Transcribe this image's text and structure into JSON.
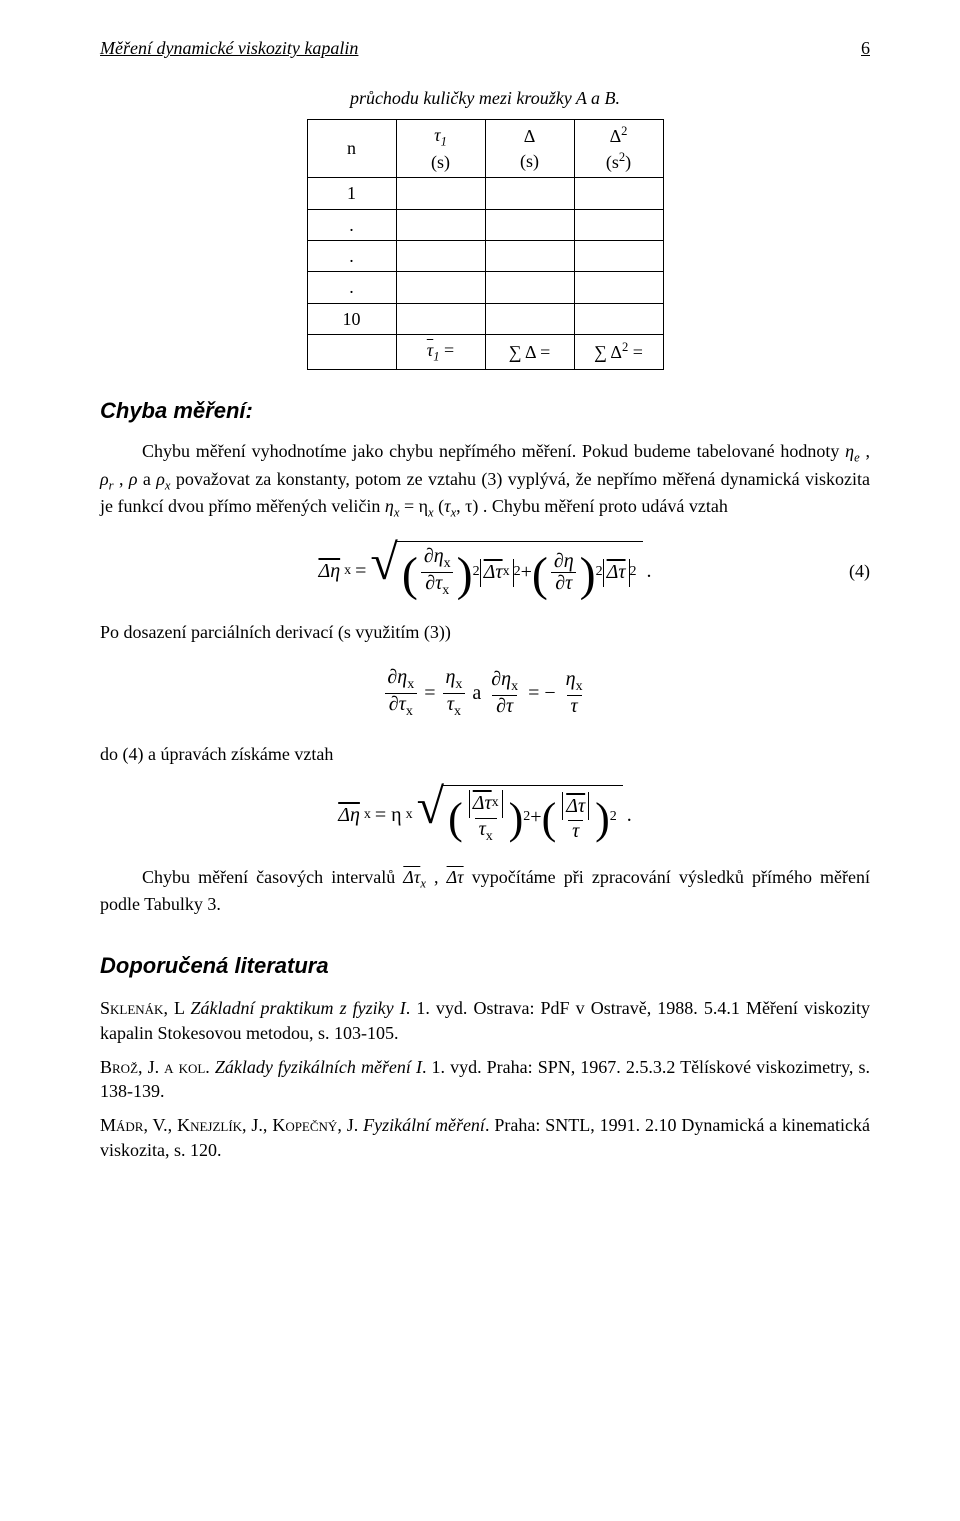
{
  "running_head": {
    "title": "Měření dynamické viskozity kapalin",
    "page": "6"
  },
  "table": {
    "caption": "průchodu kuličky mezi kroužky A a B.",
    "head": {
      "c0_top": "n",
      "c1_top": "τ",
      "c1_topsub": "1",
      "c1_bot": "(s)",
      "c2_top": "Δ",
      "c2_bot": "(s)",
      "c3_top": "Δ",
      "c3_sup": "2",
      "c3_bot": "(s",
      "c3_botsup": "2",
      "c3_botend": ")"
    },
    "rows": {
      "r1": "1",
      "dot": ".",
      "r10": "10"
    },
    "foot": {
      "a_lhs": "τ",
      "a_sub": "1",
      "a_eq": " =",
      "b": "∑ Δ =",
      "c": "∑ Δ",
      "c_sup": "2",
      "c_eq": " ="
    }
  },
  "section_error": "Chyba měření:",
  "para1": {
    "pre": "Chybu měření vyhodnotíme jako chybu nepřímého měření. Pokud budeme tabelované hodnoty ",
    "eta_e": "η",
    "eta_e_sub": "e",
    "sep1": ", ",
    "rho_r": "ρ",
    "rho_r_sub": "r",
    "sep2": ", ",
    "rho": "ρ",
    "and": " a ",
    "rho_x": "ρ",
    "rho_x_sub": "x",
    "mid": " považovat za konstanty, potom ze vztahu (3) vyplývá, že nepřímo měřená dynamická viskozita je funkcí dvou přímo měřených veličin ",
    "rel": "η",
    "rel_sub": "x",
    "rel_eq": " = η",
    "rel_sub2": "x",
    "rel_paren_open": " (",
    "rel_tau": "τ",
    "rel_tau_sub": "x",
    "rel_comma": ", τ",
    "rel_paren_close": ")",
    "after": ". Chybu měření proto udává vztah"
  },
  "eq4": {
    "lhs_bar": "Δη",
    "lhs_sub": "x",
    "eq": " = ",
    "d1_num": "∂η",
    "d1_num_sub": "x",
    "d1_den": "∂τ",
    "d1_den_sub": "x",
    "times1_bar": "Δτ",
    "times1_sub": "x",
    "plus": " + ",
    "d2_num": "∂η",
    "d2_den": "∂τ",
    "times2_bar": "Δτ",
    "sq": "2",
    "dot": ".",
    "num": "(4)"
  },
  "para2": "Po dosazení parciálních derivací (s využitím (3))",
  "eq_mid": {
    "l_num": "∂η",
    "l_num_sub": "x",
    "l_den": "∂τ",
    "l_den_sub": "x",
    "eq1": " = ",
    "r_num": "η",
    "r_num_sub": "x",
    "r_den": "τ",
    "r_den_sub": "x",
    "and": "  a  ",
    "l2_num": "∂η",
    "l2_num_sub": "x",
    "l2_den": "∂τ",
    "eq2": " = − ",
    "r2_num": "η",
    "r2_num_sub": "x",
    "r2_den": "τ"
  },
  "para3": "do (4) a úpravách získáme vztah",
  "eq_final": {
    "lhs_bar": "Δη",
    "lhs_sub": "x",
    "eq": " = η",
    "eq_sub": "x",
    "f1_num_bar": "Δτ",
    "f1_num_sub": "x",
    "f1_den": "τ",
    "f1_den_sub": "x",
    "plus": " + ",
    "f2_num_bar": "Δτ",
    "f2_den": "τ",
    "sq": "2",
    "dot": "."
  },
  "para4": {
    "pre": "Chybu měření časových intervalů ",
    "t1_bar": "Δτ",
    "t1_sub": "x",
    "sep": ", ",
    "t2_bar": "Δτ",
    "post": " vypočítáme při zpracování výsledků přímého měření podle Tabulky 3."
  },
  "lit_heading": "Doporučená literatura",
  "refs": {
    "r1_a": "Sklenák, L ",
    "r1_b": "Základní praktikum z fyziky I",
    "r1_c": ". 1. vyd. Ostrava: PdF v Ostravě, 1988. 5.4.1 Měření viskozity kapalin Stokesovou metodou, s. 103-105.",
    "r2_a": "Brož, J. a kol. ",
    "r2_b": "Základy fyzikálních měření I",
    "r2_c": ". 1. vyd. Praha: SPN, 1967. 2.5.3.2 Tělískové viskozimetry, s. 138-139.",
    "r3_a": "Mádr, V., Knejzlík, J., Kopečný, J. ",
    "r3_b": "Fyzikální měření",
    "r3_c": ". Praha: SNTL, 1991. 2.10 Dynamická a kinematická viskozita, s. 120."
  }
}
